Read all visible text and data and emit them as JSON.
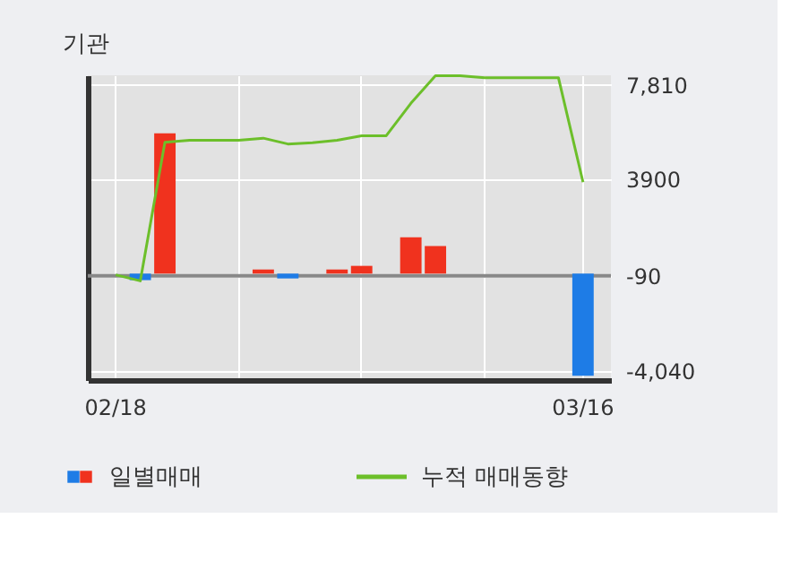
{
  "chart_data": {
    "type": "bar",
    "title": "기관",
    "categories": [
      "02/18",
      null,
      null,
      null,
      null,
      null,
      null,
      null,
      null,
      null,
      null,
      null,
      null,
      null,
      null,
      null,
      null,
      null,
      null,
      "03/16"
    ],
    "series": [
      {
        "name": "일별매매",
        "values": [
          null,
          -270,
          5800,
          null,
          null,
          null,
          170,
          -200,
          null,
          170,
          320,
          null,
          1500,
          1140,
          null,
          null,
          null,
          null,
          null,
          -4220
        ],
        "colors": [
          "#f0321e",
          "#1e7ce6",
          "#f0321e",
          "#f0321e",
          "#f0321e",
          "#f0321e",
          "#f0321e",
          "#1e7ce6",
          "#f0321e",
          "#f0321e",
          "#f0321e",
          "#f0321e",
          "#f0321e",
          "#f0321e",
          "#f0321e",
          "#f0321e",
          "#f0321e",
          "#f0321e",
          "#f0321e",
          "#1e7ce6"
        ]
      },
      {
        "name": "누적 매매동향",
        "type": "line",
        "color": "#6cbf2a",
        "values": [
          -50,
          -300,
          5430,
          5510,
          5510,
          5510,
          5600,
          5360,
          5410,
          5510,
          5700,
          5700,
          7040,
          8180,
          8180,
          8100,
          8100,
          8100,
          8100,
          3780
        ]
      }
    ],
    "ylim": [
      -4400,
      8200
    ],
    "yticks": [
      {
        "value": 7810,
        "label": "7,810"
      },
      3900,
      -90,
      {
        "value": -4040,
        "label": "-4,040"
      }
    ],
    "ref_lines": [
      {
        "axis": "y",
        "value": -90,
        "color": "#888888"
      }
    ],
    "grid": true,
    "legend": "bottom"
  }
}
